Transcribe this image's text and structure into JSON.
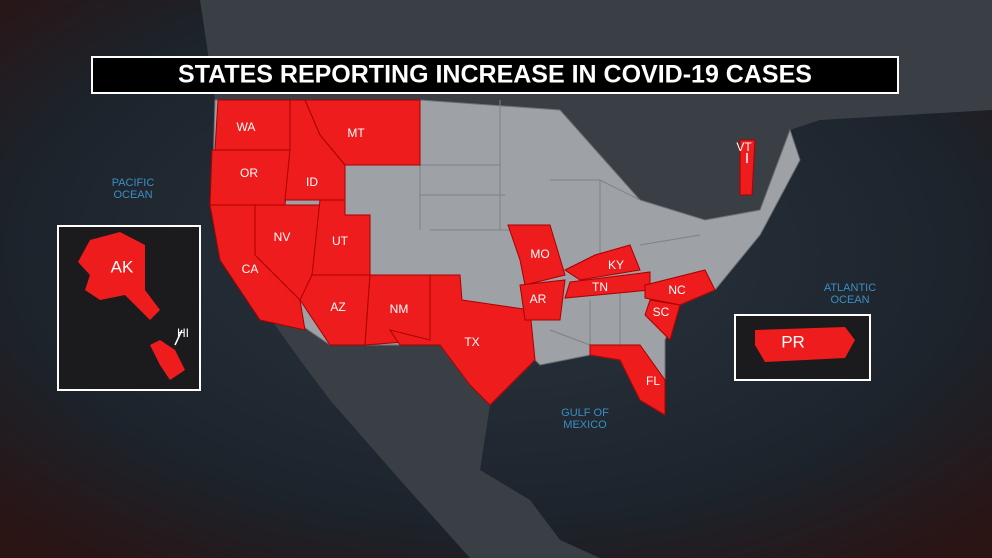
{
  "header": {
    "title": "STATES REPORTING INCREASE IN COVID-19 CASES"
  },
  "states": [
    {
      "label": "WA"
    },
    {
      "label": "OR"
    },
    {
      "label": "MT"
    },
    {
      "label": "ID"
    },
    {
      "label": "NV"
    },
    {
      "label": "UT"
    },
    {
      "label": "CA"
    },
    {
      "label": "AZ"
    },
    {
      "label": "NM"
    },
    {
      "label": "TX"
    },
    {
      "label": "MO"
    },
    {
      "label": "AR"
    },
    {
      "label": "KY"
    },
    {
      "label": "TN"
    },
    {
      "label": "NC"
    },
    {
      "label": "SC"
    },
    {
      "label": "FL"
    },
    {
      "label": "VT"
    },
    {
      "label": "AK"
    },
    {
      "label": "HI"
    },
    {
      "label": "PR"
    }
  ],
  "oceans": [
    {
      "lines": [
        "PACIFIC",
        "OCEAN"
      ]
    },
    {
      "lines": [
        "ATLANTIC",
        "OCEAN"
      ]
    },
    {
      "lines": [
        "GULF OF",
        "MEXICO"
      ]
    }
  ]
}
